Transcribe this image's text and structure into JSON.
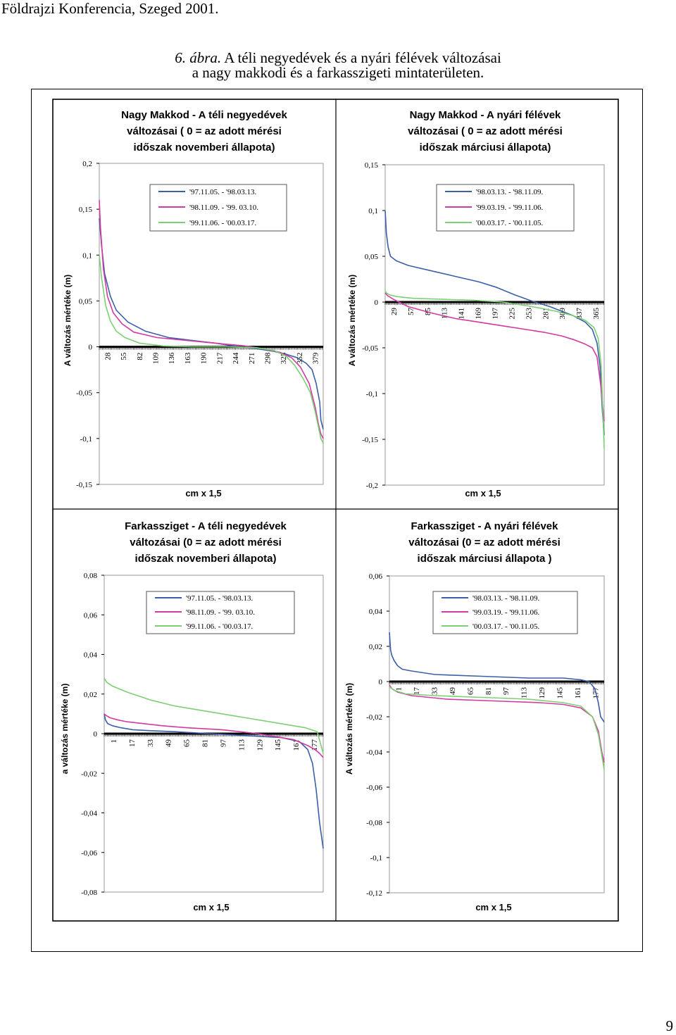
{
  "page": {
    "header": "Földrajzi Konferencia, Szeged 2001.",
    "caption_lead": "6. ábra.",
    "caption_line1": "A téli negyedévek és a nyári félévek változásai",
    "caption_line2": "a nagy makkodi és a farkasszigeti mintaterületen.",
    "page_number": "9"
  },
  "colors": {
    "blue": "#3a5fa8",
    "magenta": "#d23aa2",
    "green": "#7ccf72",
    "zero_line": "#000000",
    "frame": "#000000"
  },
  "chart_data": [
    {
      "type": "line",
      "title": [
        "Nagy Makkod - A téli negyedévek",
        "változásai ( 0 = az adott mérési",
        "időszak novemberi állapota)"
      ],
      "xlabel": "cm x 1,5",
      "ylabel": "A változás mértéke (m)",
      "ylim": [
        -0.15,
        0.2
      ],
      "yticks": [
        "0,2",
        "0,15",
        "0,1",
        "0,05",
        "0",
        "-0,05",
        "-0,1",
        "-0,15"
      ],
      "yticks_values": [
        0.2,
        0.15,
        0.1,
        0.05,
        0,
        -0.05,
        -0.1,
        -0.15
      ],
      "xlim": [
        1,
        384
      ],
      "xticks": [
        "28",
        "55",
        "82",
        "109",
        "136",
        "163",
        "190",
        "217",
        "244",
        "271",
        "298",
        "325",
        "352",
        "379"
      ],
      "legend_position": "top-right",
      "series": [
        {
          "name": "'97.11.05. - '98.03.13.",
          "color": "blue",
          "x": [
            1,
            5,
            10,
            20,
            30,
            50,
            80,
            120,
            160,
            200,
            240,
            270,
            300,
            320,
            340,
            355,
            365,
            372,
            378,
            380,
            384
          ],
          "y": [
            0.14,
            0.11,
            0.08,
            0.055,
            0.04,
            0.027,
            0.017,
            0.01,
            0.007,
            0.004,
            0.0,
            -0.002,
            -0.005,
            -0.008,
            -0.012,
            -0.018,
            -0.025,
            -0.04,
            -0.06,
            -0.08,
            -0.09
          ]
        },
        {
          "name": "'98.11.09. - '99. 03.10.",
          "color": "magenta",
          "x": [
            1,
            3,
            8,
            15,
            25,
            40,
            60,
            100,
            150,
            200,
            250,
            280,
            310,
            330,
            345,
            360,
            370,
            376,
            380,
            384
          ],
          "y": [
            0.16,
            0.13,
            0.085,
            0.055,
            0.037,
            0.025,
            0.016,
            0.01,
            0.007,
            0.004,
            0.001,
            -0.002,
            -0.006,
            -0.012,
            -0.022,
            -0.04,
            -0.065,
            -0.085,
            -0.095,
            -0.1
          ]
        },
        {
          "name": "'99.11.06. - '00.03.17.",
          "color": "green",
          "x": [
            1,
            5,
            12,
            20,
            30,
            45,
            70,
            110,
            160,
            220,
            270,
            300,
            320,
            335,
            350,
            362,
            370,
            376,
            380,
            384
          ],
          "y": [
            0.1,
            0.075,
            0.045,
            0.028,
            0.017,
            0.01,
            0.004,
            0.001,
            0.0,
            0.0,
            -0.001,
            -0.004,
            -0.01,
            -0.02,
            -0.035,
            -0.05,
            -0.07,
            -0.088,
            -0.1,
            -0.105
          ]
        }
      ]
    },
    {
      "type": "line",
      "title": [
        "Nagy Makkod - A nyári félévek",
        "változásai ( 0 = az adott mérési",
        "időszak márciusi állapota)"
      ],
      "xlabel": "cm x 1,5",
      "ylabel": "A változás mértéke (m)",
      "ylim": [
        -0.2,
        0.15
      ],
      "yticks": [
        "0,15",
        "0,1",
        "0,05",
        "0",
        "-0,05",
        "-0,1",
        "-0,15",
        "-0,2"
      ],
      "yticks_values": [
        0.15,
        0.1,
        0.05,
        0,
        -0.05,
        -0.1,
        -0.15,
        -0.2
      ],
      "xlim": [
        1,
        372
      ],
      "xticks": [
        "29",
        "57",
        "85",
        "113",
        "141",
        "169",
        "197",
        "225",
        "253",
        "281",
        "309",
        "337",
        "365"
      ],
      "legend_position": "top-right",
      "series": [
        {
          "name": "'98.03.13. - '98.11.09.",
          "color": "blue",
          "x": [
            1,
            3,
            6,
            10,
            20,
            40,
            80,
            120,
            160,
            190,
            220,
            250,
            280,
            300,
            320,
            340,
            352,
            360,
            365,
            369,
            372
          ],
          "y": [
            0.1,
            0.075,
            0.06,
            0.05,
            0.045,
            0.04,
            0.034,
            0.028,
            0.022,
            0.016,
            0.008,
            0.001,
            -0.005,
            -0.01,
            -0.015,
            -0.022,
            -0.03,
            -0.045,
            -0.07,
            -0.12,
            -0.145
          ]
        },
        {
          "name": "'99.03.19. - '99.11.06.",
          "color": "magenta",
          "x": [
            1,
            5,
            15,
            40,
            80,
            120,
            160,
            200,
            240,
            270,
            300,
            320,
            340,
            352,
            360,
            366,
            372
          ],
          "y": [
            0.01,
            0.007,
            0.003,
            -0.005,
            -0.012,
            -0.018,
            -0.022,
            -0.026,
            -0.03,
            -0.033,
            -0.037,
            -0.041,
            -0.046,
            -0.05,
            -0.06,
            -0.09,
            -0.13
          ]
        },
        {
          "name": "'00.03.17. - '00.11.05.",
          "color": "green",
          "x": [
            1,
            3,
            8,
            20,
            50,
            100,
            150,
            200,
            250,
            290,
            320,
            340,
            355,
            362,
            367,
            372
          ],
          "y": [
            0.012,
            0.01,
            0.008,
            0.006,
            0.004,
            0.003,
            0.002,
            0.0,
            -0.005,
            -0.01,
            -0.015,
            -0.02,
            -0.028,
            -0.04,
            -0.07,
            -0.16
          ]
        }
      ]
    },
    {
      "type": "line",
      "title": [
        "Farkassziget - A téli negyedévek",
        "változásai (0 = az adott mérési",
        "időszak novemberi állapota)"
      ],
      "xlabel": "cm x 1,5",
      "ylabel": "a változás mértéke (m)",
      "ylim": [
        -0.08,
        0.08
      ],
      "yticks": [
        "0,08",
        "0,06",
        "0,04",
        "0,02",
        "0",
        "-0,02",
        "-0,04",
        "-0,06",
        "-0,08"
      ],
      "yticks_values": [
        0.08,
        0.06,
        0.04,
        0.02,
        0,
        -0.02,
        -0.04,
        -0.06,
        -0.08
      ],
      "xlim": [
        1,
        185
      ],
      "xticks": [
        "1",
        "17",
        "33",
        "49",
        "65",
        "81",
        "97",
        "113",
        "129",
        "145",
        "161",
        "177"
      ],
      "legend_position": "top-right",
      "series": [
        {
          "name": "'97.11.05. - '98.03.13.",
          "color": "blue",
          "x": [
            1,
            2,
            4,
            8,
            15,
            25,
            40,
            60,
            90,
            120,
            150,
            165,
            172,
            176,
            179,
            182,
            185
          ],
          "y": [
            0.01,
            0.007,
            0.005,
            0.004,
            0.003,
            0.002,
            0.0015,
            0.001,
            0.0,
            -0.001,
            -0.002,
            -0.004,
            -0.008,
            -0.015,
            -0.028,
            -0.045,
            -0.058
          ]
        },
        {
          "name": "'98.11.09. - '99. 03.10.",
          "color": "magenta",
          "x": [
            1,
            3,
            6,
            12,
            20,
            35,
            50,
            70,
            100,
            130,
            160,
            172,
            178,
            182,
            185
          ],
          "y": [
            0.01,
            0.009,
            0.008,
            0.007,
            0.006,
            0.005,
            0.004,
            0.003,
            0.002,
            0.0,
            -0.003,
            -0.006,
            -0.008,
            -0.01,
            -0.012
          ]
        },
        {
          "name": "'99.11.06. - '00.03.17.",
          "color": "green",
          "x": [
            1,
            3,
            8,
            20,
            40,
            60,
            90,
            120,
            150,
            170,
            180,
            185
          ],
          "y": [
            0.028,
            0.026,
            0.024,
            0.021,
            0.017,
            0.014,
            0.011,
            0.008,
            0.005,
            0.003,
            0.001,
            -0.01
          ]
        }
      ]
    },
    {
      "type": "line",
      "title": [
        "Farkassziget - A nyári félévek",
        "változásai (0 = az adott mérési",
        "időszak márciusi állapota )"
      ],
      "xlabel": "cm x 1,5",
      "ylabel": "A változás mértéke (m)",
      "ylim": [
        -0.12,
        0.06
      ],
      "yticks": [
        "0,06",
        "0,04",
        "0,02",
        "0",
        "-0,02",
        "-0,04",
        "-0,06",
        "-0,08",
        "-0,1",
        "-0,12"
      ],
      "yticks_values": [
        0.06,
        0.04,
        0.02,
        0,
        -0.02,
        -0.04,
        -0.06,
        -0.08,
        -0.1,
        -0.12
      ],
      "xlim": [
        1,
        185
      ],
      "xticks": [
        "1",
        "17",
        "33",
        "49",
        "65",
        "81",
        "97",
        "113",
        "129",
        "145",
        "161",
        "177"
      ],
      "legend_position": "top-right",
      "series": [
        {
          "name": "'98.03.13. - '98.11.09.",
          "color": "blue",
          "x": [
            1,
            2,
            3,
            5,
            8,
            12,
            20,
            40,
            80,
            120,
            150,
            165,
            172,
            177,
            180,
            182,
            185
          ],
          "y": [
            0.028,
            0.018,
            0.015,
            0.012,
            0.009,
            0.007,
            0.006,
            0.004,
            0.003,
            0.002,
            0.002,
            0.001,
            0.0,
            -0.004,
            -0.012,
            -0.02,
            -0.023
          ]
        },
        {
          "name": "'99.03.19. - '99.11.06.",
          "color": "magenta",
          "x": [
            1,
            3,
            8,
            20,
            50,
            90,
            130,
            150,
            165,
            175,
            180,
            183,
            185
          ],
          "y": [
            -0.002,
            -0.004,
            -0.006,
            -0.008,
            -0.01,
            -0.011,
            -0.012,
            -0.013,
            -0.015,
            -0.02,
            -0.028,
            -0.04,
            -0.046
          ]
        },
        {
          "name": "'00.03.17. - '00.11.05.",
          "color": "green",
          "x": [
            1,
            5,
            15,
            40,
            80,
            120,
            150,
            165,
            175,
            180,
            183,
            185
          ],
          "y": [
            -0.003,
            -0.005,
            -0.007,
            -0.008,
            -0.009,
            -0.01,
            -0.012,
            -0.014,
            -0.02,
            -0.03,
            -0.042,
            -0.05
          ]
        }
      ]
    }
  ]
}
